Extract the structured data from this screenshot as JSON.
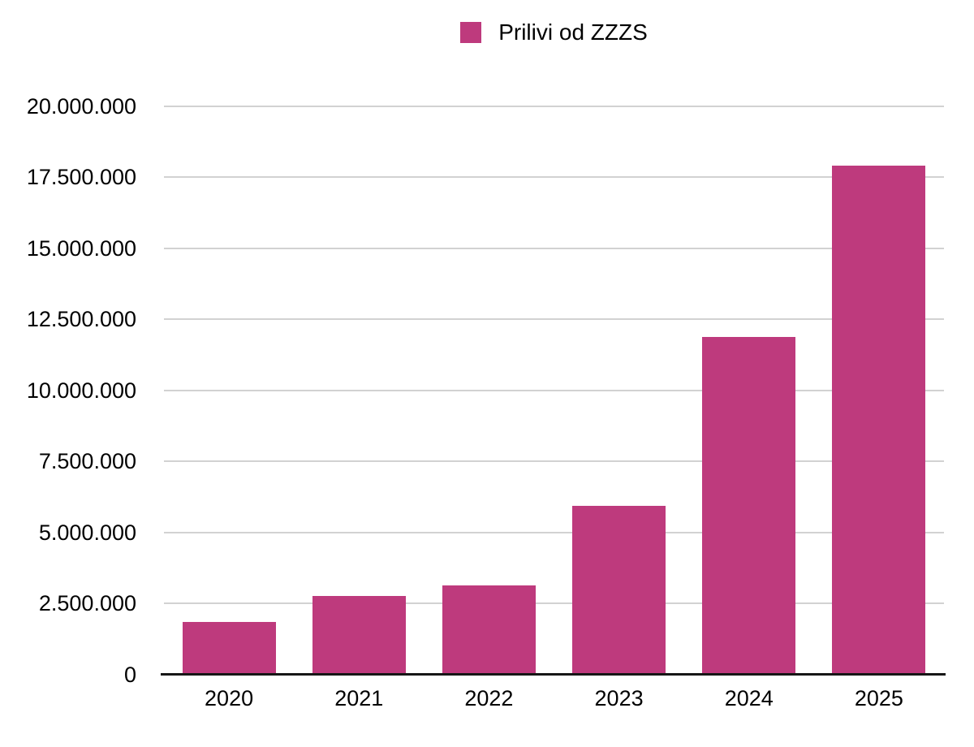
{
  "legend": {
    "label": "Prilivi od ZZZS",
    "swatch_color": "#BE3A7D"
  },
  "chart_data": {
    "type": "bar",
    "title": "",
    "xlabel": "",
    "ylabel": "",
    "categories": [
      "2020",
      "2021",
      "2022",
      "2023",
      "2024",
      "2025"
    ],
    "series": [
      {
        "name": "Prilivi od ZZZS",
        "values": [
          1840000,
          2770000,
          3130000,
          5920000,
          11870000,
          17890000
        ]
      }
    ],
    "ylim": [
      0,
      20000000
    ],
    "ytick_interval": 2500000,
    "ytick_labels": [
      "0",
      "2.500.000",
      "5.000.000",
      "7.500.000",
      "10.000.000",
      "12.500.000",
      "15.000.000",
      "17.500.000",
      "20.000.000"
    ],
    "grid": true,
    "legend_position": "top-center",
    "bar_color": "#BE3A7D",
    "gridline_color": "#D2D2D2",
    "axis_line_color": "#161616",
    "text_color": "#000000"
  }
}
